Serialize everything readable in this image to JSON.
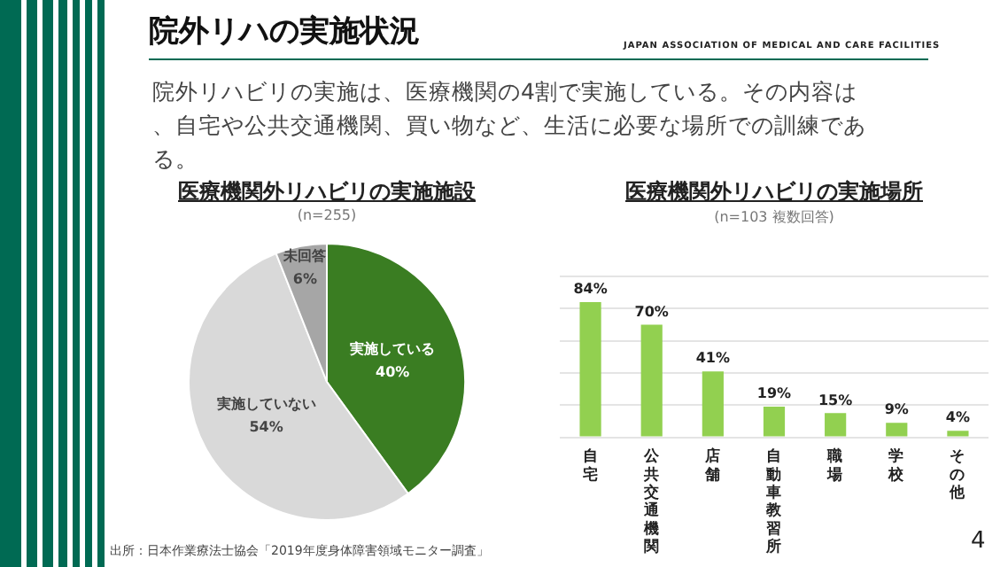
{
  "chart_data": [
    {
      "type": "pie",
      "title": "医療機関外リハビリの実施施設",
      "subtitle": "(n=255)",
      "categories": [
        "実施している",
        "実施していない",
        "未回答"
      ],
      "values": [
        40,
        54,
        6
      ],
      "value_labels": [
        "40%",
        "54%",
        "6%"
      ],
      "colors": [
        "#3a7d22",
        "#d9d9d9",
        "#a6a6a6"
      ],
      "annotations": [
        "院外リハの実施状況",
        "JAPAN ASSOCIATION OF MEDICAL AND CARE FACILITIES",
        "院外リハビリの実施は、医療機関の4割で実施している。その内容は、自宅や公共交通機関、買い物など、生活に必要な場所での訓練である。",
        "出所：日本作業療法士協会「2019年度身体障害領域モニター調査」",
        "4"
      ]
    },
    {
      "type": "bar",
      "title": "医療機関外リハビリの実施場所",
      "subtitle": "(n=103 複数回答)",
      "categories": [
        "自宅",
        "公共交通機関",
        "店舗",
        "自動車教習所",
        "職場",
        "学校",
        "その他"
      ],
      "values": [
        84,
        70,
        41,
        19,
        15,
        9,
        4
      ],
      "value_labels": [
        "84%",
        "70%",
        "41%",
        "19%",
        "15%",
        "9%",
        "4%"
      ],
      "color": "#92d050",
      "ylim": [
        0,
        100
      ],
      "yticks": [
        {
          "value": 0,
          "label": null
        },
        {
          "value": 20,
          "label": null
        },
        {
          "value": 40,
          "label": null
        },
        {
          "value": 60,
          "label": null
        },
        {
          "value": 80,
          "label": null
        },
        {
          "value": 100,
          "label": null
        }
      ],
      "grid": "y",
      "tick_labels": "x"
    }
  ]
}
